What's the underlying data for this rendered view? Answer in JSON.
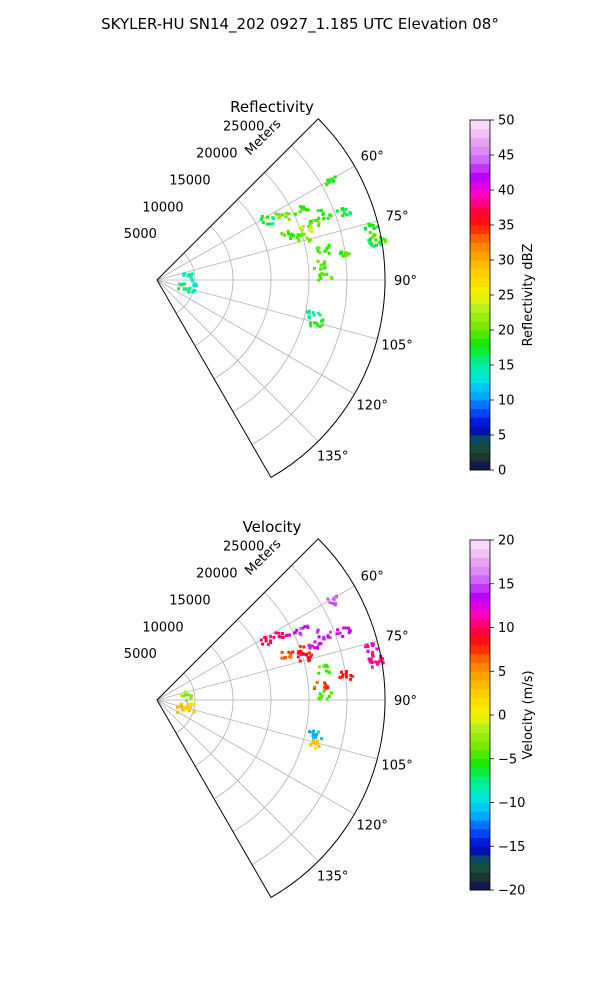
{
  "title": "SKYLER-HU  SN14_202  0927_1.185 UTC Elevation 08°",
  "chart_data": [
    {
      "type": "heatmap",
      "projection": "polar-sector",
      "title": "Reflectivity",
      "range_label": "Meters",
      "azimuth_range_deg": [
        45,
        150
      ],
      "range_max_m": 30000,
      "range_ticks": [
        5000,
        10000,
        15000,
        20000,
        25000
      ],
      "range_tick_labels": [
        "5000",
        "10000",
        "15000",
        "20000",
        "25000"
      ],
      "azimuth_ticks": [
        60,
        75,
        90,
        105,
        120,
        135
      ],
      "azimuth_tick_labels": [
        "60°",
        "75°",
        "90°",
        "105°",
        "120°",
        "135°"
      ],
      "grid": true,
      "colorbar": {
        "label": "Reflectivity dBZ",
        "min": 0,
        "max": 50,
        "ticks": [
          0,
          5,
          10,
          15,
          20,
          25,
          30,
          35,
          40,
          45,
          50
        ],
        "tick_labels": [
          "0",
          "5",
          "10",
          "15",
          "20",
          "25",
          "30",
          "35",
          "40",
          "45",
          "50"
        ],
        "position": "right"
      },
      "echoes": [
        {
          "az": 60,
          "range": 26500,
          "value": 18
        },
        {
          "az": 63.5,
          "range": 21000,
          "value": 19
        },
        {
          "az": 62,
          "range": 18500,
          "value": 20
        },
        {
          "az": 61,
          "range": 16500,
          "value": 17
        },
        {
          "az": 70,
          "range": 22000,
          "value": 20
        },
        {
          "az": 68,
          "range": 23500,
          "value": 18
        },
        {
          "az": 69.5,
          "range": 26000,
          "value": 17
        },
        {
          "az": 71,
          "range": 20500,
          "value": 24
        },
        {
          "az": 73,
          "range": 20000,
          "value": 20
        },
        {
          "az": 70,
          "range": 18000,
          "value": 19
        },
        {
          "az": 76,
          "range": 29000,
          "value": 18
        },
        {
          "az": 79,
          "range": 29500,
          "value": 20
        },
        {
          "az": 82,
          "range": 25000,
          "value": 19
        },
        {
          "az": 84.5,
          "range": 21500,
          "value": 20
        },
        {
          "az": 88,
          "range": 22000,
          "value": 19
        },
        {
          "az": 80,
          "range": 29000,
          "value": 17
        },
        {
          "az": 79,
          "range": 22000,
          "value": 19
        },
        {
          "az": 80.5,
          "range": 4000,
          "value": 15
        },
        {
          "az": 104,
          "range": 3500,
          "value": 17
        },
        {
          "az": 101,
          "range": 4200,
          "value": 14
        },
        {
          "az": 102,
          "range": 21000,
          "value": 15
        },
        {
          "az": 105,
          "range": 21500,
          "value": 18
        }
      ]
    },
    {
      "type": "heatmap",
      "projection": "polar-sector",
      "title": "Velocity",
      "range_label": "Meters",
      "azimuth_range_deg": [
        45,
        150
      ],
      "range_max_m": 30000,
      "range_ticks": [
        5000,
        10000,
        15000,
        20000,
        25000
      ],
      "range_tick_labels": [
        "5000",
        "10000",
        "15000",
        "20000",
        "25000"
      ],
      "azimuth_ticks": [
        60,
        75,
        90,
        105,
        120,
        135
      ],
      "azimuth_tick_labels": [
        "60°",
        "75°",
        "90°",
        "105°",
        "120°",
        "135°"
      ],
      "grid": true,
      "colorbar": {
        "label": "Velocity (m/s)",
        "min": -20,
        "max": 20,
        "ticks": [
          -20,
          -15,
          -10,
          -5,
          0,
          5,
          10,
          15,
          20
        ],
        "tick_labels": [
          "−20",
          "−15",
          "−10",
          "−5",
          "0",
          "5",
          "10",
          "15",
          "20"
        ],
        "position": "right"
      },
      "echoes": [
        {
          "az": 60,
          "range": 26500,
          "value": 15
        },
        {
          "az": 63.5,
          "range": 21000,
          "value": 14
        },
        {
          "az": 62,
          "range": 18500,
          "value": 11
        },
        {
          "az": 61,
          "range": 16500,
          "value": 10
        },
        {
          "az": 70,
          "range": 22000,
          "value": 13
        },
        {
          "az": 68,
          "range": 23500,
          "value": 14
        },
        {
          "az": 69.5,
          "range": 26000,
          "value": 13
        },
        {
          "az": 71,
          "range": 20500,
          "value": 8
        },
        {
          "az": 73,
          "range": 20000,
          "value": 9
        },
        {
          "az": 70,
          "range": 18000,
          "value": 7
        },
        {
          "az": 76,
          "range": 29000,
          "value": 12
        },
        {
          "az": 79,
          "range": 29500,
          "value": 10
        },
        {
          "az": 82,
          "range": 25000,
          "value": 8
        },
        {
          "az": 84.5,
          "range": 21500,
          "value": 7
        },
        {
          "az": 88,
          "range": 22000,
          "value": -4
        },
        {
          "az": 80,
          "range": 29000,
          "value": 11
        },
        {
          "az": 79,
          "range": 22000,
          "value": -4
        },
        {
          "az": 80.5,
          "range": 4000,
          "value": -3
        },
        {
          "az": 104,
          "range": 3500,
          "value": 4
        },
        {
          "az": 101,
          "range": 4200,
          "value": 2
        },
        {
          "az": 102,
          "range": 21000,
          "value": -11
        },
        {
          "az": 105,
          "range": 21500,
          "value": 3
        }
      ]
    }
  ]
}
